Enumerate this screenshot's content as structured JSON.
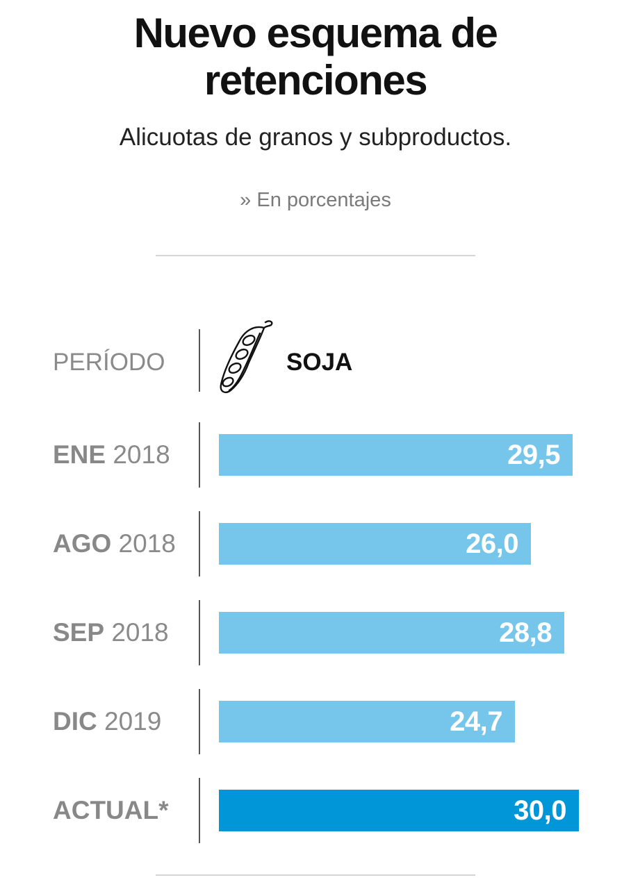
{
  "header": {
    "title_line1": "Nuevo esquema de",
    "title_line2": "retenciones",
    "subtitle": "Alicuotas de granos y subproductos.",
    "units": "» En porcentajes"
  },
  "table": {
    "period_header": "PERÍODO",
    "series_header": "SOJA",
    "series_icon": "soy-pod-icon"
  },
  "colors": {
    "bar": "#75c6ea",
    "bar_highlight": "#0096d8",
    "value_text": "#ffffff"
  },
  "chart_data": {
    "type": "bar",
    "orientation": "horizontal",
    "title": "Nuevo esquema de retenciones",
    "subtitle": "Alicuotas de granos y subproductos.",
    "units": "» En porcentajes",
    "categories": [
      {
        "month": "ENE",
        "year": "2018"
      },
      {
        "month": "AGO",
        "year": "2018"
      },
      {
        "month": "SEP",
        "year": "2018"
      },
      {
        "month": "DIC",
        "year": "2019"
      },
      {
        "month": "ACTUAL*",
        "year": ""
      }
    ],
    "series": [
      {
        "name": "SOJA",
        "values": [
          29.5,
          26.0,
          28.8,
          24.7,
          30.0
        ],
        "value_labels": [
          "29,5",
          "26,0",
          "28,8",
          "24,7",
          "30,0"
        ]
      }
    ],
    "highlight_index": 4,
    "xlim": [
      0,
      30
    ]
  }
}
